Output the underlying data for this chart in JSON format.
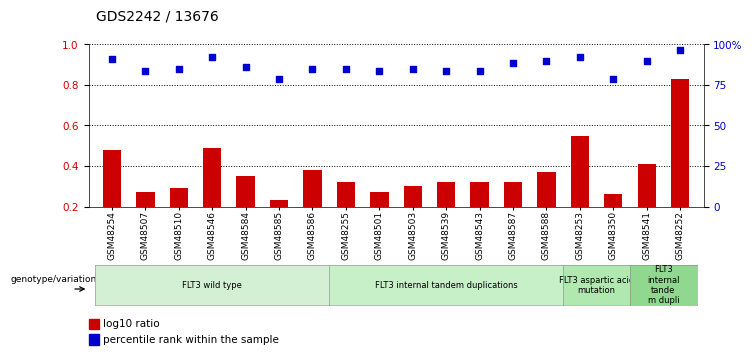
{
  "title": "GDS2242 / 13676",
  "samples": [
    "GSM48254",
    "GSM48507",
    "GSM48510",
    "GSM48546",
    "GSM48584",
    "GSM48585",
    "GSM48586",
    "GSM48255",
    "GSM48501",
    "GSM48503",
    "GSM48539",
    "GSM48543",
    "GSM48587",
    "GSM48588",
    "GSM48253",
    "GSM48350",
    "GSM48541",
    "GSM48252"
  ],
  "log10_ratio": [
    0.48,
    0.27,
    0.29,
    0.49,
    0.35,
    0.23,
    0.38,
    0.32,
    0.27,
    0.3,
    0.32,
    0.32,
    0.32,
    0.37,
    0.55,
    0.26,
    0.41,
    0.83
  ],
  "percentile_rank": [
    0.93,
    0.87,
    0.88,
    0.94,
    0.89,
    0.83,
    0.88,
    0.88,
    0.87,
    0.88,
    0.87,
    0.87,
    0.91,
    0.92,
    0.94,
    0.83,
    0.92,
    0.97
  ],
  "bar_color": "#cc0000",
  "dot_color": "#0000cc",
  "groups": [
    {
      "label": "FLT3 wild type",
      "start": 0,
      "end": 7,
      "color": "#d4f0d4"
    },
    {
      "label": "FLT3 internal tandem duplications",
      "start": 7,
      "end": 14,
      "color": "#c8f0c8"
    },
    {
      "label": "FLT3 aspartic acid\nmutation",
      "start": 14,
      "end": 16,
      "color": "#b0e8b0"
    },
    {
      "label": "FLT3\ninternal\ntande\nm dupli",
      "start": 16,
      "end": 18,
      "color": "#90d890"
    }
  ],
  "genotype_label": "genotype/variation",
  "legend_bar": "log10 ratio",
  "legend_dot": "percentile rank within the sample",
  "ylim_left": [
    0.2,
    1.0
  ],
  "yticks_left": [
    0.2,
    0.4,
    0.6,
    0.8,
    1.0
  ],
  "yticks_right": [
    0,
    25,
    50,
    75,
    100
  ],
  "hlines": [
    0.4,
    0.6,
    0.8,
    1.0
  ],
  "background_color": "#ffffff",
  "tick_color_left": "#cc0000",
  "tick_color_right": "#0000cc"
}
